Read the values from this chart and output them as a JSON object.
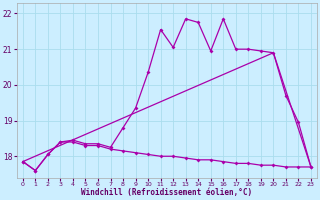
{
  "xlabel": "Windchill (Refroidissement éolien,°C)",
  "xlim": [
    -0.5,
    23.5
  ],
  "ylim": [
    17.4,
    22.3
  ],
  "yticks": [
    18,
    19,
    20,
    21,
    22
  ],
  "xticks": [
    0,
    1,
    2,
    3,
    4,
    5,
    6,
    7,
    8,
    9,
    10,
    11,
    12,
    13,
    14,
    15,
    16,
    17,
    18,
    19,
    20,
    21,
    22,
    23
  ],
  "background_color": "#cceeff",
  "line_color": "#aa00aa",
  "grid_color": "#aaddee",
  "line1_x": [
    0,
    1,
    2,
    3,
    4,
    5,
    6,
    7,
    8,
    9,
    10,
    11,
    12,
    13,
    14,
    15,
    16,
    17,
    18,
    19,
    20,
    21,
    22,
    23
  ],
  "line1_y": [
    17.85,
    17.6,
    18.05,
    18.4,
    18.4,
    18.3,
    18.3,
    18.2,
    18.15,
    18.1,
    18.05,
    18.0,
    18.0,
    17.95,
    17.9,
    17.9,
    17.85,
    17.8,
    17.8,
    17.75,
    17.75,
    17.7,
    17.7,
    17.7
  ],
  "line2_x": [
    0,
    20,
    23
  ],
  "line2_y": [
    17.85,
    20.9,
    17.7
  ],
  "line3_x": [
    0,
    1,
    2,
    3,
    4,
    5,
    6,
    7,
    8,
    9,
    10,
    11,
    12,
    13,
    14,
    15,
    16,
    17,
    18,
    19,
    20,
    21,
    22,
    23
  ],
  "line3_y": [
    17.85,
    17.6,
    18.05,
    18.4,
    18.45,
    18.35,
    18.35,
    18.25,
    18.8,
    19.35,
    20.35,
    21.55,
    21.05,
    21.85,
    21.75,
    20.95,
    21.85,
    21.0,
    21.0,
    20.95,
    20.9,
    19.7,
    18.95,
    17.7
  ]
}
